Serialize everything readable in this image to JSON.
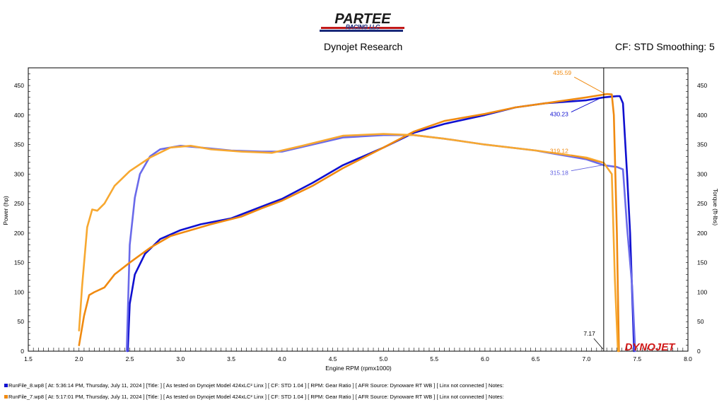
{
  "header": {
    "logo_text_1": "PARTEE",
    "logo_text_2": "RACING LLC",
    "center_title": "Dynojet Research",
    "right_info": "CF: STD Smoothing: 5"
  },
  "watermark": "DYNOJET",
  "runs": [
    {
      "label": "RunFile_8.wp8 [ At: 5:36:14 PM, Thursday, July 11, 2024 ] [Title: ] [ As tested on Dynojet Model 424xLC² Linx ] [ CF: STD 1.04 ] [ RPM: Gear Ratio ] [ AFR Source: Dynoware RT WB ] [ Linx not connected ] Notes:",
      "color": "#1010d0"
    },
    {
      "label": "RunFile_7.wp8 [ At: 5:17:01 PM, Thursday, July 11, 2024 ] [Title: ] [ As tested on Dynojet Model 424xLC² Linx ] [ CF: STD 1.04 ] [ RPM: Gear Ratio ] [ AFR Source: Dynoware RT WB ] [ Linx not connected ] Notes:",
      "color": "#f08a10"
    }
  ],
  "chart_data": {
    "type": "line",
    "xlabel": "Engine RPM (rpmx1000)",
    "ylabel": "Power (hp)",
    "y2label": "Torque (ft-lbs)",
    "xlim": [
      1.5,
      8.0
    ],
    "ylim": [
      0,
      480
    ],
    "xticks": [
      "1.5",
      "2.0",
      "2.5",
      "3.0",
      "3.5",
      "4.0",
      "4.5",
      "5.0",
      "5.5",
      "6.0",
      "6.5",
      "7.0",
      "7.5",
      "8.0"
    ],
    "yticks": [
      "0",
      "50",
      "100",
      "150",
      "200",
      "250",
      "300",
      "350",
      "400",
      "450"
    ],
    "cursor_x": 7.17,
    "cursor_label": "7.17",
    "annotations": [
      {
        "text": "435.59",
        "color": "#f08a10",
        "x": 7.2,
        "y": 435.59
      },
      {
        "text": "430.23",
        "color": "#1010d0",
        "x": 7.17,
        "y": 430.23
      },
      {
        "text": "319.12",
        "color": "#f08a10",
        "x": 7.17,
        "y": 319.12
      },
      {
        "text": "315.18",
        "color": "#6060e0",
        "x": 7.17,
        "y": 315.18
      }
    ],
    "series": [
      {
        "name": "RunFile_8.wp8",
        "kind": "Power",
        "color": "#1010d0",
        "x": [
          2.48,
          2.5,
          2.55,
          2.65,
          2.8,
          3.0,
          3.2,
          3.5,
          3.8,
          4.0,
          4.3,
          4.6,
          5.0,
          5.3,
          5.6,
          6.0,
          6.3,
          6.6,
          7.0,
          7.17,
          7.3,
          7.33,
          7.36,
          7.4,
          7.43,
          7.47
        ],
        "y": [
          0,
          80,
          130,
          165,
          190,
          205,
          215,
          225,
          245,
          258,
          285,
          315,
          345,
          370,
          385,
          400,
          413,
          420,
          425,
          430,
          432,
          432,
          420,
          300,
          200,
          0
        ]
      },
      {
        "name": "RunFile_8.wp8",
        "kind": "Torque",
        "color": "#6a6aea",
        "x": [
          2.47,
          2.5,
          2.55,
          2.6,
          2.7,
          2.8,
          3.0,
          3.2,
          3.5,
          3.8,
          4.0,
          4.3,
          4.6,
          5.0,
          5.3,
          5.6,
          6.0,
          6.5,
          7.0,
          7.17,
          7.3,
          7.36,
          7.4,
          7.45,
          7.48
        ],
        "y": [
          0,
          180,
          260,
          300,
          330,
          342,
          348,
          345,
          340,
          338,
          338,
          350,
          362,
          366,
          366,
          360,
          350,
          340,
          325,
          315,
          312,
          308,
          210,
          110,
          0
        ]
      },
      {
        "name": "RunFile_7.wp8",
        "kind": "Power",
        "color": "#f08a10",
        "x": [
          2.0,
          2.05,
          2.1,
          2.15,
          2.25,
          2.35,
          2.5,
          2.7,
          2.9,
          3.1,
          3.3,
          3.6,
          3.8,
          4.0,
          4.3,
          4.6,
          5.0,
          5.3,
          5.6,
          6.0,
          6.3,
          6.6,
          7.0,
          7.2,
          7.25,
          7.27,
          7.3,
          7.32
        ],
        "y": [
          10,
          60,
          95,
          100,
          108,
          130,
          150,
          175,
          195,
          205,
          215,
          228,
          242,
          255,
          280,
          310,
          345,
          372,
          390,
          402,
          413,
          420,
          430,
          435.59,
          435,
          400,
          200,
          0
        ]
      },
      {
        "name": "RunFile_7.wp8",
        "kind": "Torque",
        "color": "#f7a830",
        "x": [
          2.0,
          2.03,
          2.08,
          2.13,
          2.18,
          2.25,
          2.35,
          2.5,
          2.7,
          2.9,
          3.1,
          3.3,
          3.6,
          3.9,
          4.2,
          4.6,
          5.0,
          5.3,
          5.6,
          6.0,
          6.5,
          7.0,
          7.17,
          7.25,
          7.28,
          7.31
        ],
        "y": [
          35,
          110,
          210,
          240,
          238,
          250,
          280,
          305,
          328,
          345,
          348,
          342,
          338,
          336,
          348,
          365,
          368,
          366,
          360,
          350,
          340,
          328,
          319.12,
          300,
          120,
          0
        ]
      }
    ]
  }
}
